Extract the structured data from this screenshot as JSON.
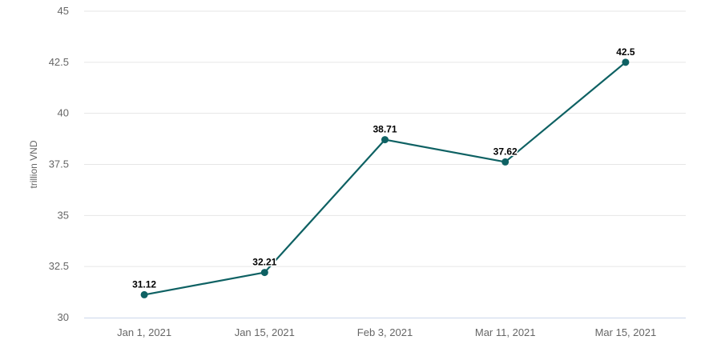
{
  "chart_data": {
    "type": "line",
    "categories": [
      "Jan 1, 2021",
      "Jan 15, 2021",
      "Feb 3, 2021",
      "Mar 11, 2021",
      "Mar 15, 2021"
    ],
    "series": [
      {
        "values": [
          31.12,
          32.21,
          38.71,
          37.62,
          42.5
        ],
        "color": "#0e6163"
      }
    ],
    "data_labels": [
      "31.12",
      "32.21",
      "38.71",
      "37.62",
      "42.5"
    ],
    "ylabel": "trillion VND",
    "ylim": [
      30,
      45
    ],
    "yticks": [
      30,
      32.5,
      35,
      37.5,
      40,
      42.5,
      45
    ],
    "ytick_labels": [
      "30",
      "32.5",
      "35",
      "37.5",
      "40",
      "42.5",
      "45"
    ],
    "grid": true,
    "legend": "none"
  }
}
